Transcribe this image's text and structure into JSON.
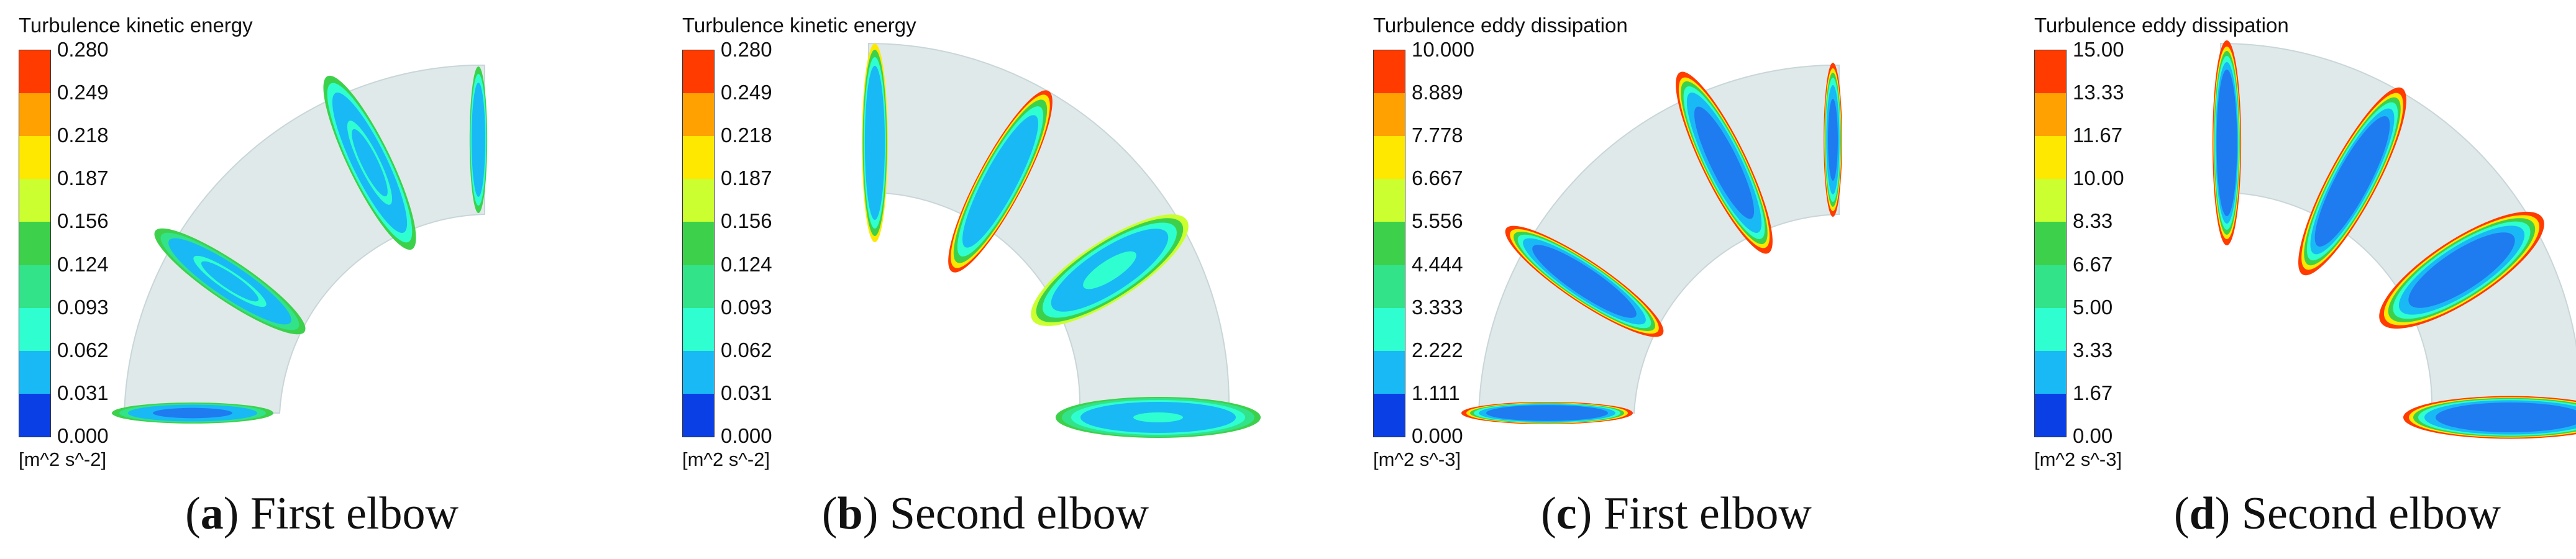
{
  "panels": [
    {
      "id": "a",
      "legend_title": "Turbulence kinetic energy",
      "ticks": [
        "0.280",
        "0.249",
        "0.218",
        "0.187",
        "0.156",
        "0.124",
        "0.093",
        "0.062",
        "0.031",
        "0.000"
      ],
      "unit": "[m^2 s^-2]",
      "caption_letter": "a",
      "caption_text": "First elbow",
      "palette": "mild"
    },
    {
      "id": "b",
      "legend_title": "Turbulence kinetic energy",
      "ticks": [
        "0.280",
        "0.249",
        "0.218",
        "0.187",
        "0.156",
        "0.124",
        "0.093",
        "0.062",
        "0.031",
        "0.000"
      ],
      "unit": "[m^2 s^-2]",
      "caption_letter": "b",
      "caption_text": "Second elbow",
      "palette": "mild"
    },
    {
      "id": "c",
      "legend_title": "Turbulence eddy dissipation",
      "ticks": [
        "10.000",
        "8.889",
        "7.778",
        "6.667",
        "5.556",
        "4.444",
        "3.333",
        "2.222",
        "1.111",
        "0.000"
      ],
      "unit": "[m^2 s^-3]",
      "caption_letter": "c",
      "caption_text": "First elbow",
      "palette": "strong"
    },
    {
      "id": "d",
      "legend_title": "Turbulence eddy dissipation",
      "ticks": [
        "15.00",
        "13.33",
        "11.67",
        "10.00",
        "8.33",
        "6.67",
        "5.00",
        "3.33",
        "1.67",
        "0.00"
      ],
      "unit": "[m^2 s^-3]",
      "caption_letter": "d",
      "caption_text": "Second elbow",
      "palette": "strong"
    }
  ],
  "colorbar_colors": [
    "#ff3b00",
    "#ffa100",
    "#ffe800",
    "#cbff2f",
    "#3dd14b",
    "#33e38a",
    "#2fffd0",
    "#19b9f5",
    "#1f7bf0",
    "#0a3fe6"
  ],
  "pipe_color": "#dfe9ea"
}
